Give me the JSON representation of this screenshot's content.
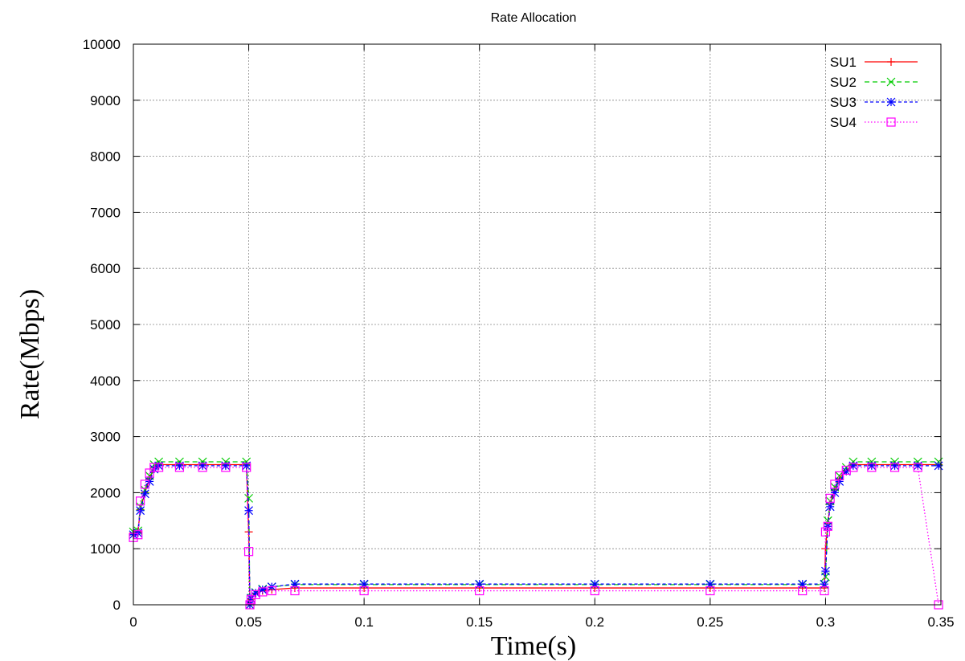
{
  "chart_data": {
    "type": "line",
    "title": "Rate Allocation",
    "xlabel": "Time(s)",
    "ylabel": "Rate(Mbps)",
    "xlim": [
      0,
      0.35
    ],
    "ylim": [
      0,
      10000
    ],
    "xticks": [
      0,
      0.05,
      0.1,
      0.15,
      0.2,
      0.25,
      0.3,
      0.35
    ],
    "xtick_labels": [
      "0",
      "0.05",
      "0.1",
      "0.15",
      "0.2",
      "0.25",
      "0.3",
      "0.35"
    ],
    "yticks": [
      0,
      1000,
      2000,
      3000,
      4000,
      5000,
      6000,
      7000,
      8000,
      9000,
      10000
    ],
    "ytick_labels": [
      "0",
      "1000",
      "2000",
      "3000",
      "4000",
      "5000",
      "6000",
      "7000",
      "8000",
      "9000",
      "10000"
    ],
    "grid": true,
    "legend_position": "top-right",
    "series": [
      {
        "name": "SU1",
        "color": "#ff0000",
        "marker": "plus",
        "dash": "solid",
        "x": [
          0,
          0.002,
          0.003,
          0.005,
          0.007,
          0.009,
          0.011,
          0.02,
          0.03,
          0.04,
          0.049,
          0.05,
          0.0505,
          0.051,
          0.053,
          0.056,
          0.06,
          0.07,
          0.1,
          0.15,
          0.2,
          0.25,
          0.29,
          0.2995,
          0.3,
          0.301,
          0.302,
          0.304,
          0.306,
          0.309,
          0.312,
          0.32,
          0.33,
          0.34,
          0.349
        ],
        "y": [
          1280,
          1300,
          1700,
          2000,
          2250,
          2450,
          2500,
          2500,
          2500,
          2500,
          2500,
          1300,
          0,
          100,
          200,
          250,
          270,
          300,
          300,
          300,
          300,
          300,
          300,
          300,
          1000,
          1450,
          1800,
          2050,
          2250,
          2400,
          2500,
          2500,
          2500,
          2500,
          2500
        ]
      },
      {
        "name": "SU2",
        "color": "#00cc00",
        "marker": "cross",
        "dash": "long",
        "x": [
          0,
          0.002,
          0.003,
          0.005,
          0.007,
          0.009,
          0.011,
          0.02,
          0.03,
          0.04,
          0.049,
          0.05,
          0.0505,
          0.051,
          0.053,
          0.056,
          0.06,
          0.07,
          0.1,
          0.15,
          0.2,
          0.25,
          0.29,
          0.2995,
          0.3,
          0.301,
          0.302,
          0.304,
          0.306,
          0.309,
          0.312,
          0.32,
          0.33,
          0.34,
          0.349
        ],
        "y": [
          1300,
          1320,
          1750,
          2050,
          2300,
          2500,
          2550,
          2550,
          2550,
          2550,
          2550,
          1900,
          0,
          120,
          220,
          280,
          320,
          360,
          360,
          360,
          360,
          360,
          360,
          360,
          500,
          1500,
          1850,
          2100,
          2300,
          2450,
          2550,
          2550,
          2550,
          2550,
          2550
        ]
      },
      {
        "name": "SU3",
        "color": "#0000ff",
        "marker": "star",
        "dash": "short",
        "x": [
          0,
          0.002,
          0.003,
          0.005,
          0.007,
          0.009,
          0.011,
          0.02,
          0.03,
          0.04,
          0.049,
          0.05,
          0.0505,
          0.051,
          0.053,
          0.056,
          0.06,
          0.07,
          0.1,
          0.15,
          0.2,
          0.25,
          0.29,
          0.2995,
          0.3,
          0.301,
          0.302,
          0.304,
          0.306,
          0.309,
          0.312,
          0.32,
          0.33,
          0.34,
          0.349
        ],
        "y": [
          1250,
          1280,
          1680,
          1980,
          2200,
          2420,
          2480,
          2480,
          2480,
          2480,
          2480,
          1680,
          0,
          110,
          210,
          270,
          320,
          370,
          370,
          370,
          370,
          370,
          370,
          370,
          600,
          1400,
          1750,
          2000,
          2200,
          2380,
          2480,
          2480,
          2480,
          2480,
          2480
        ]
      },
      {
        "name": "SU4",
        "color": "#ff00ff",
        "marker": "box",
        "dash": "dotted",
        "x": [
          0,
          0.002,
          0.003,
          0.005,
          0.007,
          0.009,
          0.011,
          0.02,
          0.03,
          0.04,
          0.049,
          0.05,
          0.0505,
          0.051,
          0.053,
          0.056,
          0.06,
          0.07,
          0.1,
          0.15,
          0.2,
          0.25,
          0.29,
          0.2995,
          0.3,
          0.301,
          0.302,
          0.304,
          0.306,
          0.309,
          0.312,
          0.32,
          0.33,
          0.34,
          0.349
        ],
        "y": [
          1200,
          1250,
          1850,
          2150,
          2350,
          2450,
          2450,
          2450,
          2450,
          2450,
          2450,
          950,
          0,
          90,
          180,
          230,
          250,
          250,
          250,
          250,
          250,
          250,
          250,
          250,
          1300,
          1400,
          1900,
          2150,
          2300,
          2400,
          2450,
          2450,
          2450,
          2450,
          0
        ]
      }
    ]
  }
}
